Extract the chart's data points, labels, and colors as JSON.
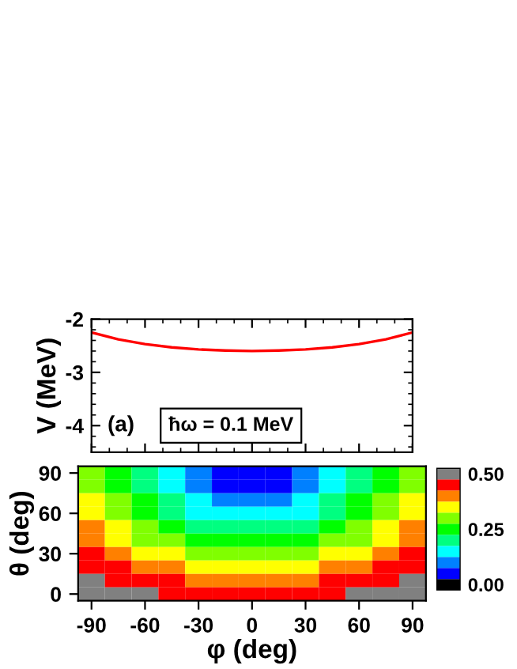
{
  "chart_data": [
    {
      "type": "line",
      "ylabel": "V (MeV)",
      "xlim": [
        -90,
        90
      ],
      "xticks": [
        -90,
        -60,
        -30,
        0,
        30,
        60,
        90
      ],
      "ylim": [
        -4.5,
        -2
      ],
      "yticks": [
        -4,
        -3,
        -2
      ],
      "tick_labels": "y",
      "grid": false,
      "legend": false,
      "x": [
        -90,
        -75,
        -60,
        -45,
        -30,
        -15,
        0,
        15,
        30,
        45,
        60,
        75,
        90
      ],
      "series": [
        {
          "color": "#ff0000",
          "values": [
            -2.25,
            -2.38,
            -2.47,
            -2.53,
            -2.57,
            -2.59,
            -2.6,
            -2.59,
            -2.57,
            -2.53,
            -2.47,
            -2.38,
            -2.25
          ]
        }
      ],
      "annotations": [
        "(a)",
        "ħω = 0.1 MeV"
      ]
    },
    {
      "type": "heatmap",
      "xlabel": "φ (deg)",
      "ylabel": "θ (deg)",
      "categories": [
        "-90",
        null,
        "-60",
        null,
        "-30",
        null,
        "0",
        null,
        "30",
        null,
        "60",
        null,
        "90"
      ],
      "y_categories": [
        "90",
        null,
        null,
        "60",
        null,
        null,
        "30",
        null,
        null,
        "0"
      ],
      "cells": [
        [
          0.3,
          0.25,
          0.2,
          0.15,
          0.1,
          0.05,
          0.05,
          0.05,
          0.1,
          0.15,
          0.2,
          0.25,
          0.3
        ],
        [
          0.3,
          0.25,
          0.2,
          0.15,
          0.1,
          0.05,
          0.05,
          0.05,
          0.1,
          0.15,
          0.2,
          0.25,
          0.3
        ],
        [
          0.35,
          0.3,
          0.25,
          0.2,
          0.15,
          0.1,
          0.1,
          0.1,
          0.15,
          0.2,
          0.25,
          0.3,
          0.35
        ],
        [
          0.35,
          0.3,
          0.25,
          0.2,
          0.15,
          0.15,
          0.15,
          0.15,
          0.15,
          0.2,
          0.25,
          0.3,
          0.35
        ],
        [
          0.4,
          0.35,
          0.3,
          0.25,
          0.2,
          0.2,
          0.2,
          0.2,
          0.2,
          0.25,
          0.3,
          0.35,
          0.4
        ],
        [
          0.4,
          0.35,
          0.3,
          0.3,
          0.25,
          0.25,
          0.25,
          0.25,
          0.25,
          0.3,
          0.3,
          0.35,
          0.4
        ],
        [
          0.45,
          0.4,
          0.35,
          0.35,
          0.3,
          0.3,
          0.3,
          0.3,
          0.3,
          0.35,
          0.35,
          0.4,
          0.45
        ],
        [
          0.45,
          0.45,
          0.4,
          0.4,
          0.35,
          0.35,
          0.35,
          0.35,
          0.35,
          0.4,
          0.4,
          0.45,
          0.45
        ],
        [
          0.5,
          0.45,
          0.45,
          0.45,
          0.4,
          0.4,
          0.4,
          0.4,
          0.4,
          0.45,
          0.45,
          0.45,
          0.5
        ],
        [
          0.5,
          0.5,
          0.5,
          0.45,
          0.45,
          0.45,
          0.45,
          0.45,
          0.45,
          0.45,
          0.5,
          0.5,
          0.5
        ]
      ],
      "colors": [
        "#000000",
        "#0000ff",
        "#0080ff",
        "#00ffff",
        "#00ff80",
        "#00ff00",
        "#80ff00",
        "#ffff00",
        "#ff8000",
        "#ff0000",
        "#808080"
      ],
      "clim": [
        -0.025,
        0.525
      ],
      "cticks": [
        {
          "value": 0.0,
          "label": "0.00"
        },
        {
          "value": 0.25,
          "label": "0.25"
        },
        {
          "value": 0.5,
          "label": "0.50"
        }
      ]
    }
  ]
}
